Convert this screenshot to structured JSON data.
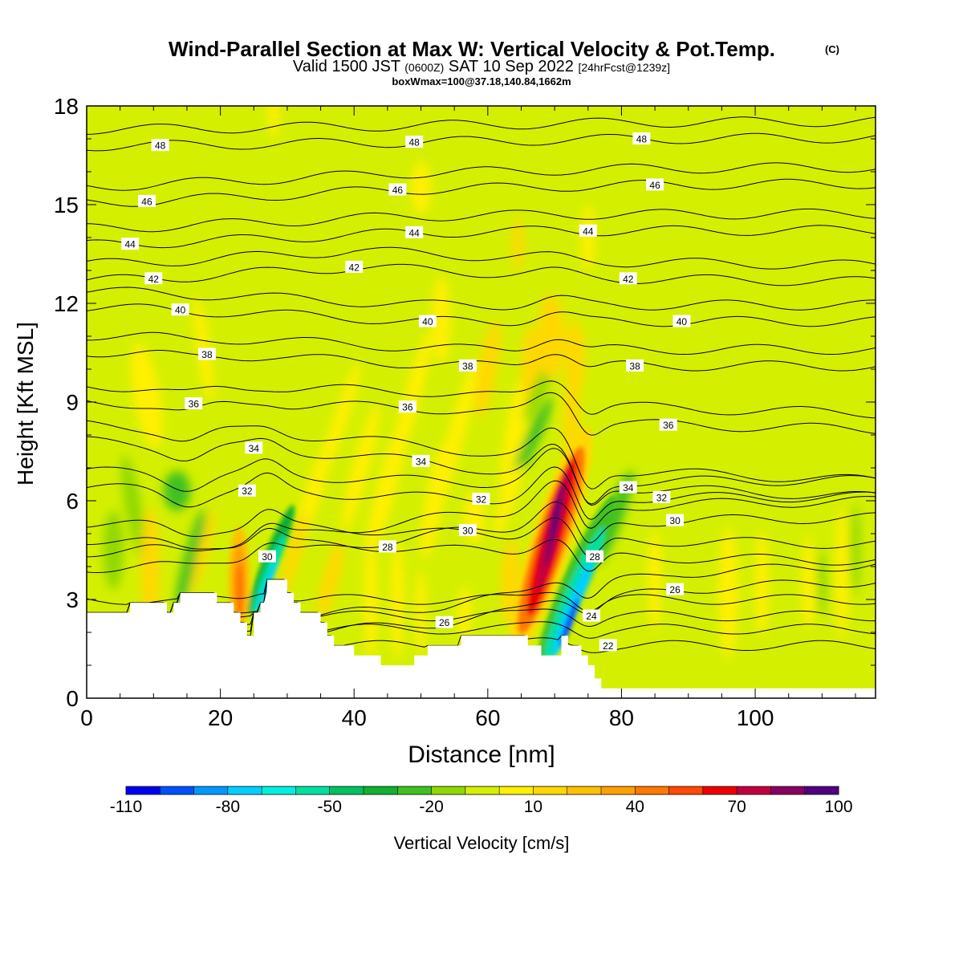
{
  "title": {
    "main": "Wind-Parallel Section at Max W: Vertical Velocity & Pot.Temp.",
    "copyright": "(C)",
    "valid_prefix": "Valid 1500 JST",
    "valid_utc": "(0600Z)",
    "valid_date": "SAT 10 Sep 2022",
    "forecast": "[24hrFcst@1239z]",
    "box_info": "boxWmax=100@37.18,140.84,1662m"
  },
  "colors": {
    "background_field": "#d4f000",
    "terrain": "#ffffff",
    "contour": "#000000"
  },
  "colorbar": {
    "label": "Vertical Velocity [cm/s]",
    "tick_labels": [
      "-110",
      "-80",
      "-50",
      "-20",
      "10",
      "40",
      "70",
      "100"
    ],
    "colors": [
      "#0000ee",
      "#0050ff",
      "#0098ff",
      "#00d0ff",
      "#00f0e0",
      "#00e0a0",
      "#00c060",
      "#10b030",
      "#40c020",
      "#90d800",
      "#d4f000",
      "#fff000",
      "#ffd800",
      "#ffc000",
      "#ffa000",
      "#ff7800",
      "#ff4800",
      "#ee0000",
      "#c00040",
      "#880060",
      "#500080"
    ]
  },
  "chart_data": {
    "type": "heatmap",
    "xlabel": "Distance [nm]",
    "ylabel": "Height [Kft MSL]",
    "xlim": [
      0,
      118
    ],
    "ylim": [
      0,
      18
    ],
    "x_ticks": [
      0,
      20,
      40,
      60,
      80,
      100
    ],
    "y_ticks": [
      0,
      3,
      6,
      9,
      12,
      15,
      18
    ],
    "field": "Vertical Velocity [cm/s]",
    "contour_field": "Potential Temperature [C]",
    "contour_levels": [
      22,
      24,
      26,
      28,
      30,
      32,
      34,
      36,
      38,
      40,
      42,
      44,
      46,
      48
    ],
    "contour_labels": [
      {
        "value": "48",
        "x": 11,
        "y": 16.8
      },
      {
        "value": "48",
        "x": 49,
        "y": 16.9
      },
      {
        "value": "48",
        "x": 83,
        "y": 17.0
      },
      {
        "value": "46",
        "x": 9,
        "y": 15.1
      },
      {
        "value": "46",
        "x": 46.5,
        "y": 15.45
      },
      {
        "value": "46",
        "x": 85,
        "y": 15.6
      },
      {
        "value": "44",
        "x": 6.5,
        "y": 13.8
      },
      {
        "value": "44",
        "x": 49,
        "y": 14.15
      },
      {
        "value": "44",
        "x": 75,
        "y": 14.2
      },
      {
        "value": "42",
        "x": 10,
        "y": 12.75
      },
      {
        "value": "42",
        "x": 40,
        "y": 13.1
      },
      {
        "value": "42",
        "x": 81,
        "y": 12.75
      },
      {
        "value": "40",
        "x": 14,
        "y": 11.8
      },
      {
        "value": "40",
        "x": 51,
        "y": 11.45
      },
      {
        "value": "40",
        "x": 89,
        "y": 11.45
      },
      {
        "value": "38",
        "x": 18,
        "y": 10.45
      },
      {
        "value": "38",
        "x": 57,
        "y": 10.1
      },
      {
        "value": "38",
        "x": 82,
        "y": 10.1
      },
      {
        "value": "36",
        "x": 16,
        "y": 8.95
      },
      {
        "value": "36",
        "x": 48,
        "y": 8.85
      },
      {
        "value": "36",
        "x": 87,
        "y": 8.3
      },
      {
        "value": "34",
        "x": 25,
        "y": 7.6
      },
      {
        "value": "34",
        "x": 50,
        "y": 7.2
      },
      {
        "value": "34",
        "x": 81,
        "y": 6.4
      },
      {
        "value": "32",
        "x": 24,
        "y": 6.3
      },
      {
        "value": "32",
        "x": 59,
        "y": 6.05
      },
      {
        "value": "32",
        "x": 86,
        "y": 6.1
      },
      {
        "value": "30",
        "x": 27,
        "y": 4.3
      },
      {
        "value": "30",
        "x": 57,
        "y": 5.1
      },
      {
        "value": "30",
        "x": 88,
        "y": 5.4
      },
      {
        "value": "28",
        "x": 45,
        "y": 4.6
      },
      {
        "value": "28",
        "x": 76,
        "y": 4.3
      },
      {
        "value": "26",
        "x": 53.5,
        "y": 2.3
      },
      {
        "value": "26",
        "x": 88,
        "y": 3.3
      },
      {
        "value": "24",
        "x": 75.5,
        "y": 2.5
      },
      {
        "value": "22",
        "x": 78,
        "y": 1.6
      }
    ],
    "terrain_height_kft": [
      {
        "x": 0,
        "y": 2.6
      },
      {
        "x": 6.5,
        "y": 2.6
      },
      {
        "x": 6.5,
        "y": 2.9
      },
      {
        "x": 12,
        "y": 2.9
      },
      {
        "x": 12,
        "y": 2.6
      },
      {
        "x": 13,
        "y": 2.6
      },
      {
        "x": 13,
        "y": 2.9
      },
      {
        "x": 14,
        "y": 2.9
      },
      {
        "x": 14,
        "y": 3.2
      },
      {
        "x": 19.5,
        "y": 3.2
      },
      {
        "x": 19.5,
        "y": 2.9
      },
      {
        "x": 22,
        "y": 2.9
      },
      {
        "x": 22,
        "y": 2.6
      },
      {
        "x": 23,
        "y": 2.6
      },
      {
        "x": 23,
        "y": 2.3
      },
      {
        "x": 24,
        "y": 2.3
      },
      {
        "x": 24,
        "y": 1.9
      },
      {
        "x": 25,
        "y": 1.9
      },
      {
        "x": 25,
        "y": 2.6
      },
      {
        "x": 26,
        "y": 2.6
      },
      {
        "x": 26,
        "y": 2.9
      },
      {
        "x": 26.5,
        "y": 2.9
      },
      {
        "x": 27,
        "y": 3.2
      },
      {
        "x": 27,
        "y": 3.6
      },
      {
        "x": 30,
        "y": 3.6
      },
      {
        "x": 30,
        "y": 3.2
      },
      {
        "x": 31,
        "y": 3.2
      },
      {
        "x": 31,
        "y": 2.9
      },
      {
        "x": 32,
        "y": 2.9
      },
      {
        "x": 32,
        "y": 2.6
      },
      {
        "x": 35,
        "y": 2.6
      },
      {
        "x": 35,
        "y": 2.3
      },
      {
        "x": 36,
        "y": 2.3
      },
      {
        "x": 36,
        "y": 1.9
      },
      {
        "x": 37,
        "y": 1.9
      },
      {
        "x": 37,
        "y": 1.6
      },
      {
        "x": 40,
        "y": 1.6
      },
      {
        "x": 40,
        "y": 1.3
      },
      {
        "x": 44,
        "y": 1.3
      },
      {
        "x": 44,
        "y": 1.0
      },
      {
        "x": 49,
        "y": 1.0
      },
      {
        "x": 49,
        "y": 1.3
      },
      {
        "x": 51,
        "y": 1.3
      },
      {
        "x": 51,
        "y": 1.6
      },
      {
        "x": 56,
        "y": 1.6
      },
      {
        "x": 56,
        "y": 1.9
      },
      {
        "x": 66,
        "y": 1.9
      },
      {
        "x": 66,
        "y": 1.6
      },
      {
        "x": 68,
        "y": 1.6
      },
      {
        "x": 68,
        "y": 1.3
      },
      {
        "x": 71,
        "y": 1.3
      },
      {
        "x": 71,
        "y": 1.9
      },
      {
        "x": 72,
        "y": 1.9
      },
      {
        "x": 72,
        "y": 1.6
      },
      {
        "x": 74,
        "y": 1.6
      },
      {
        "x": 74,
        "y": 1.3
      },
      {
        "x": 75,
        "y": 1.3
      },
      {
        "x": 75,
        "y": 1.0
      },
      {
        "x": 76,
        "y": 1.0
      },
      {
        "x": 76,
        "y": 0.6
      },
      {
        "x": 77,
        "y": 0.6
      },
      {
        "x": 77,
        "y": 0.3
      },
      {
        "x": 118,
        "y": 0.3
      }
    ],
    "vertical_velocity_features": [
      {
        "label": "strong updraft",
        "x": 69.5,
        "y": 5.0,
        "max_cm_s": 100
      },
      {
        "label": "downdraft",
        "x": 72.5,
        "y": 3.0,
        "min_cm_s": -80
      },
      {
        "label": "updraft",
        "x": 22.5,
        "y": 3.3,
        "max_cm_s": 45
      },
      {
        "label": "downdraft",
        "x": 27.5,
        "y": 4.0,
        "min_cm_s": -75
      }
    ]
  }
}
